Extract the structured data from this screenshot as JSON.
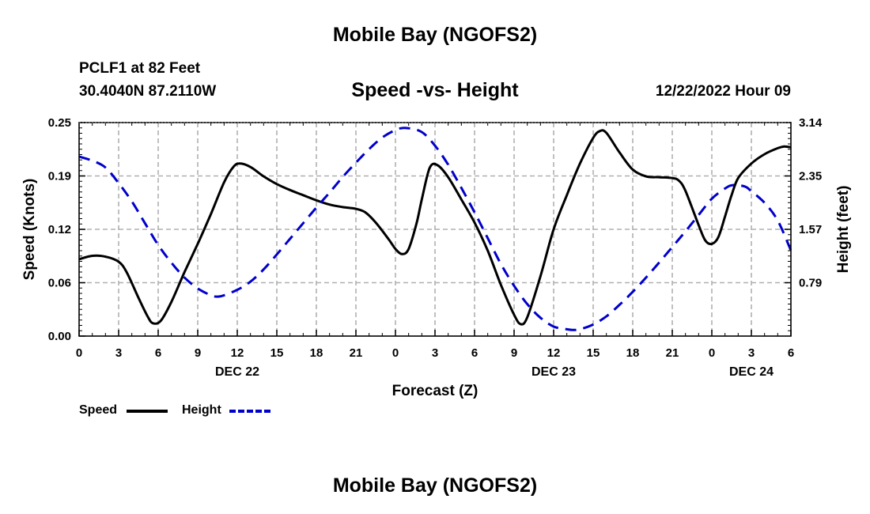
{
  "header": {
    "title": "Mobile Bay (NGOFS2)",
    "station": "PCLF1 at 82 Feet",
    "coords": "30.4040N  87.2110W",
    "subtitle": "Speed -vs- Height",
    "timestamp": "12/22/2022 Hour 09"
  },
  "footer": {
    "title": "Mobile Bay (NGOFS2)"
  },
  "legend": {
    "speed_label": "Speed",
    "height_label": "Height"
  },
  "colors": {
    "speed": "#000000",
    "height": "#0000cc",
    "grid": "#b0b0b0"
  },
  "chart_data": {
    "type": "line",
    "xlabel": "Forecast (Z)",
    "ylabel_left": "Speed (Knots)",
    "ylabel_right": "Height (feet)",
    "x_range_hours": [
      0,
      54
    ],
    "x_tick_labels": [
      "0",
      "3",
      "6",
      "9",
      "12",
      "15",
      "18",
      "21",
      "0",
      "3",
      "6",
      "9",
      "12",
      "15",
      "18",
      "21",
      "0",
      "3",
      "6"
    ],
    "date_labels": [
      {
        "label": "DEC 22",
        "hour": 12
      },
      {
        "label": "DEC 23",
        "hour": 36
      },
      {
        "label": "DEC 24",
        "hour": 51
      }
    ],
    "ylim_left": [
      0,
      0.25
    ],
    "left_ticks": [
      "0.00",
      "0.06",
      "0.12",
      "0.19",
      "0.25"
    ],
    "ylim_right": [
      0,
      3.14
    ],
    "right_ticks": [
      "0.79",
      "1.57",
      "2.35",
      "3.14"
    ],
    "grid": true,
    "series": [
      {
        "name": "Speed",
        "axis": "left",
        "style": "solid",
        "points": [
          [
            0,
            0.09
          ],
          [
            1,
            0.094
          ],
          [
            2,
            0.093
          ],
          [
            3,
            0.087
          ],
          [
            3.6,
            0.075
          ],
          [
            4.5,
            0.045
          ],
          [
            5.2,
            0.023
          ],
          [
            5.6,
            0.015
          ],
          [
            6.2,
            0.018
          ],
          [
            7,
            0.04
          ],
          [
            8,
            0.075
          ],
          [
            9,
            0.108
          ],
          [
            10,
            0.143
          ],
          [
            11,
            0.18
          ],
          [
            11.7,
            0.198
          ],
          [
            12.2,
            0.202
          ],
          [
            13,
            0.198
          ],
          [
            14,
            0.187
          ],
          [
            15,
            0.178
          ],
          [
            16,
            0.171
          ],
          [
            17,
            0.165
          ],
          [
            18,
            0.159
          ],
          [
            19,
            0.154
          ],
          [
            20,
            0.151
          ],
          [
            21,
            0.149
          ],
          [
            21.7,
            0.145
          ],
          [
            22.5,
            0.133
          ],
          [
            23.5,
            0.113
          ],
          [
            24,
            0.102
          ],
          [
            24.5,
            0.096
          ],
          [
            25,
            0.102
          ],
          [
            25.6,
            0.132
          ],
          [
            26,
            0.16
          ],
          [
            26.6,
            0.197
          ],
          [
            27.2,
            0.2
          ],
          [
            28,
            0.186
          ],
          [
            29,
            0.16
          ],
          [
            30,
            0.133
          ],
          [
            31,
            0.1
          ],
          [
            32,
            0.06
          ],
          [
            33,
            0.025
          ],
          [
            33.5,
            0.014
          ],
          [
            34,
            0.022
          ],
          [
            35,
            0.07
          ],
          [
            36,
            0.125
          ],
          [
            37,
            0.165
          ],
          [
            38,
            0.202
          ],
          [
            39,
            0.232
          ],
          [
            39.5,
            0.24
          ],
          [
            40,
            0.238
          ],
          [
            41,
            0.215
          ],
          [
            42,
            0.195
          ],
          [
            43,
            0.187
          ],
          [
            44,
            0.186
          ],
          [
            45,
            0.185
          ],
          [
            45.5,
            0.182
          ],
          [
            46,
            0.17
          ],
          [
            47,
            0.13
          ],
          [
            47.5,
            0.112
          ],
          [
            48,
            0.108
          ],
          [
            48.5,
            0.116
          ],
          [
            49,
            0.14
          ],
          [
            49.5,
            0.165
          ],
          [
            50,
            0.185
          ],
          [
            51,
            0.202
          ],
          [
            52,
            0.213
          ],
          [
            53,
            0.22
          ],
          [
            53.5,
            0.222
          ],
          [
            54,
            0.221
          ]
        ]
      },
      {
        "name": "Height",
        "axis": "right",
        "style": "dashed",
        "points": [
          [
            0,
            2.64
          ],
          [
            1,
            2.58
          ],
          [
            2,
            2.48
          ],
          [
            3,
            2.25
          ],
          [
            4,
            1.98
          ],
          [
            5,
            1.66
          ],
          [
            6,
            1.34
          ],
          [
            7,
            1.08
          ],
          [
            8,
            0.86
          ],
          [
            9,
            0.7
          ],
          [
            10,
            0.6
          ],
          [
            10.5,
            0.58
          ],
          [
            11,
            0.6
          ],
          [
            12,
            0.68
          ],
          [
            13,
            0.8
          ],
          [
            14,
            0.98
          ],
          [
            15,
            1.2
          ],
          [
            16,
            1.43
          ],
          [
            17,
            1.66
          ],
          [
            18,
            1.89
          ],
          [
            19,
            2.11
          ],
          [
            20,
            2.34
          ],
          [
            21,
            2.55
          ],
          [
            22,
            2.75
          ],
          [
            23,
            2.92
          ],
          [
            24,
            3.03
          ],
          [
            24.8,
            3.06
          ],
          [
            26,
            3.0
          ],
          [
            27,
            2.8
          ],
          [
            28,
            2.52
          ],
          [
            29,
            2.18
          ],
          [
            30,
            1.82
          ],
          [
            31,
            1.44
          ],
          [
            32,
            1.06
          ],
          [
            33,
            0.74
          ],
          [
            34,
            0.47
          ],
          [
            35,
            0.27
          ],
          [
            36,
            0.14
          ],
          [
            37,
            0.1
          ],
          [
            37.5,
            0.09
          ],
          [
            38,
            0.1
          ],
          [
            39,
            0.17
          ],
          [
            40,
            0.29
          ],
          [
            41,
            0.46
          ],
          [
            42,
            0.65
          ],
          [
            43,
            0.86
          ],
          [
            44,
            1.08
          ],
          [
            45,
            1.31
          ],
          [
            46,
            1.54
          ],
          [
            47,
            1.78
          ],
          [
            48,
            2.02
          ],
          [
            49,
            2.17
          ],
          [
            49.6,
            2.22
          ],
          [
            50.5,
            2.2
          ],
          [
            51,
            2.13
          ],
          [
            52,
            1.96
          ],
          [
            53,
            1.7
          ],
          [
            54,
            1.26
          ]
        ]
      }
    ]
  }
}
